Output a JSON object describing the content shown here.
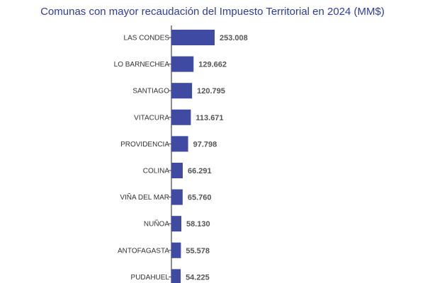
{
  "chart_data": {
    "type": "bar",
    "orientation": "horizontal",
    "title": "Comunas con mayor recaudación del Impuesto Territorial en 2024 (MM$)",
    "categories": [
      "LAS CONDES",
      "LO BARNECHEA",
      "SANTIAGO",
      "VITACURA",
      "PROVIDENCIA",
      "COLINA",
      "VIÑA DEL MAR",
      "NUÑOA",
      "ANTOFAGASTA",
      "PUDAHUEL"
    ],
    "values": [
      253008,
      129662,
      120795,
      113671,
      97798,
      66291,
      65760,
      58130,
      55578,
      54225
    ],
    "value_labels": [
      "253.008",
      "129.662",
      "120.795",
      "113.671",
      "97.798",
      "66.291",
      "65.760",
      "58.130",
      "55.578",
      "54.225"
    ],
    "bar_color": "#3f4ba3",
    "grid": false,
    "legend": "none"
  }
}
